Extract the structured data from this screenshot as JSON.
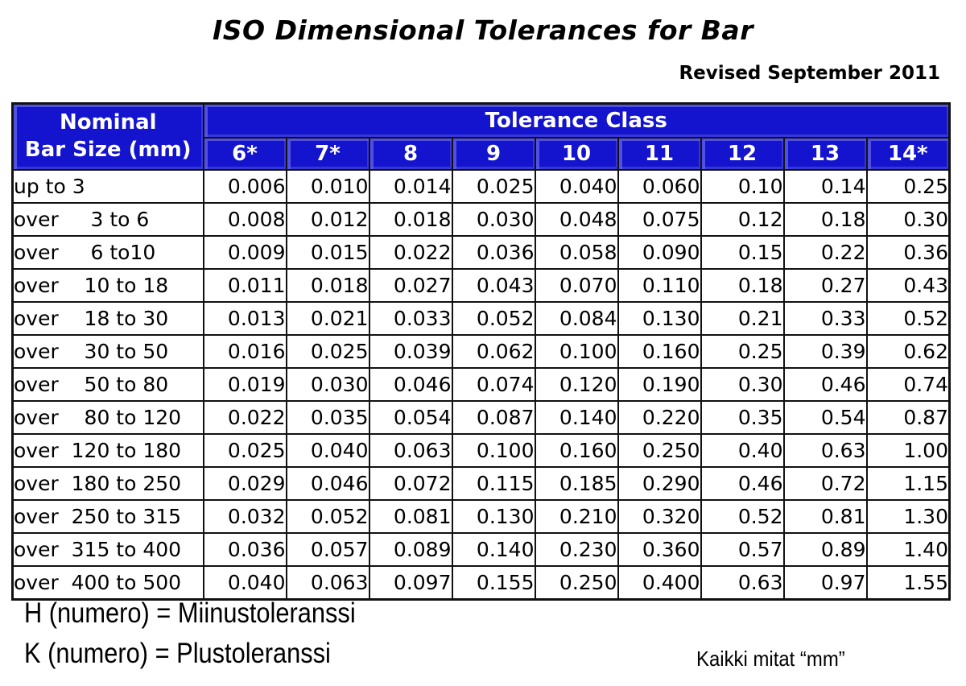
{
  "header": {
    "title": "ISO Dimensional Tolerances for Bar",
    "revision": "Revised September 2011"
  },
  "table": {
    "corner_line1": "Nominal",
    "corner_line2": "Bar Size (mm)",
    "group_header": "Tolerance Class",
    "class_headers": [
      "6*",
      "7*",
      "8",
      "9",
      "10",
      "11",
      "12",
      "13",
      "14*"
    ],
    "rows": [
      {
        "label": "up to 3",
        "values": [
          "0.006",
          "0.010",
          "0.014",
          "0.025",
          "0.040",
          "0.060",
          "0.10",
          "0.14",
          "0.25"
        ]
      },
      {
        "label": "over     3 to 6",
        "values": [
          "0.008",
          "0.012",
          "0.018",
          "0.030",
          "0.048",
          "0.075",
          "0.12",
          "0.18",
          "0.30"
        ]
      },
      {
        "label": "over     6 to10",
        "values": [
          "0.009",
          "0.015",
          "0.022",
          "0.036",
          "0.058",
          "0.090",
          "0.15",
          "0.22",
          "0.36"
        ]
      },
      {
        "label": "over    10 to 18",
        "values": [
          "0.011",
          "0.018",
          "0.027",
          "0.043",
          "0.070",
          "0.110",
          "0.18",
          "0.27",
          "0.43"
        ]
      },
      {
        "label": "over    18 to 30",
        "values": [
          "0.013",
          "0.021",
          "0.033",
          "0.052",
          "0.084",
          "0.130",
          "0.21",
          "0.33",
          "0.52"
        ]
      },
      {
        "label": "over    30 to 50",
        "values": [
          "0.016",
          "0.025",
          "0.039",
          "0.062",
          "0.100",
          "0.160",
          "0.25",
          "0.39",
          "0.62"
        ]
      },
      {
        "label": "over    50 to 80",
        "values": [
          "0.019",
          "0.030",
          "0.046",
          "0.074",
          "0.120",
          "0.190",
          "0.30",
          "0.46",
          "0.74"
        ]
      },
      {
        "label": "over    80 to 120",
        "values": [
          "0.022",
          "0.035",
          "0.054",
          "0.087",
          "0.140",
          "0.220",
          "0.35",
          "0.54",
          "0.87"
        ]
      },
      {
        "label": "over  120 to 180",
        "values": [
          "0.025",
          "0.040",
          "0.063",
          "0.100",
          "0.160",
          "0.250",
          "0.40",
          "0.63",
          "1.00"
        ]
      },
      {
        "label": "over  180 to 250",
        "values": [
          "0.029",
          "0.046",
          "0.072",
          "0.115",
          "0.185",
          "0.290",
          "0.46",
          "0.72",
          "1.15"
        ]
      },
      {
        "label": "over  250 to 315",
        "values": [
          "0.032",
          "0.052",
          "0.081",
          "0.130",
          "0.210",
          "0.320",
          "0.52",
          "0.81",
          "1.30"
        ]
      },
      {
        "label": "over  315 to 400",
        "values": [
          "0.036",
          "0.057",
          "0.089",
          "0.140",
          "0.230",
          "0.360",
          "0.57",
          "0.89",
          "1.40"
        ]
      },
      {
        "label": "over  400 to 500",
        "values": [
          "0.040",
          "0.063",
          "0.097",
          "0.155",
          "0.250",
          "0.400",
          "0.63",
          "0.97",
          "1.55"
        ]
      }
    ]
  },
  "notes": {
    "h_note": "H (numero) = Miinustoleranssi",
    "k_note": "K (numero) = Plustoleranssi",
    "units_note": "Kaikki mitat “mm”"
  },
  "colors": {
    "header_bg": "#1414CE",
    "header_text": "#FFFFFF",
    "grid": "#111111",
    "text": "#000000"
  }
}
